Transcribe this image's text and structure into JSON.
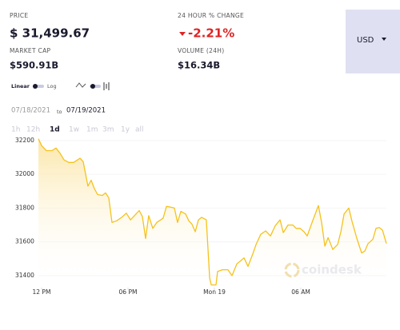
{
  "header": {
    "price_label": "PRICE",
    "price": "$ 31,499.67",
    "change_label": "24 HOUR % CHANGE",
    "change": "-2.21%",
    "market_cap_label": "MARKET CAP",
    "market_cap": "$590.91B",
    "volume_label": "VOLUME (24H)",
    "volume": "$16.34B",
    "currency": "USD"
  },
  "scale_toggle": {
    "linear": "Linear",
    "log": "Log"
  },
  "date_range": {
    "from": "07/18/2021",
    "to_word": "to",
    "to": "07/19/2021"
  },
  "ranges": [
    "1h",
    "12h",
    "1d",
    "1w",
    "1m",
    "3m",
    "1y",
    "all"
  ],
  "watermark": "coindesk",
  "chart_data": {
    "type": "line",
    "color": "#f5c21b",
    "fill": "#fdf0c4",
    "x": [
      -0.22,
      0,
      0.33,
      0.72,
      1.0,
      1.28,
      1.56,
      1.89,
      2.22,
      2.5,
      2.67,
      2.89,
      3.22,
      3.44,
      3.67,
      3.89,
      4.22,
      4.44,
      4.67,
      4.89,
      5.22,
      5.56,
      5.89,
      6.17,
      6.5,
      6.78,
      7.0,
      7.22,
      7.44,
      7.72,
      8.0,
      8.44,
      8.67,
      9.0,
      9.22,
      9.44,
      9.67,
      10.0,
      10.22,
      10.44,
      10.67,
      10.89,
      11.11,
      11.44,
      11.67,
      11.78,
      12.11,
      12.22,
      12.56,
      12.94,
      13.22,
      13.56,
      13.78,
      14.06,
      14.33,
      14.67,
      14.89,
      15.22,
      15.56,
      15.89,
      16.22,
      16.56,
      16.78,
      17.11,
      17.44,
      17.67,
      17.94,
      18.22,
      18.44,
      18.78,
      19.22,
      19.44,
      19.67,
      19.89,
      20.22,
      20.56,
      20.78,
      21.0,
      21.33,
      21.56,
      21.89,
      22.22,
      22.44,
      22.67,
      23.0,
      23.22,
      23.44,
      23.67,
      23.94
    ],
    "values": [
      32210,
      32170,
      32140,
      32140,
      32155,
      32125,
      32085,
      32070,
      32070,
      32085,
      32095,
      32075,
      31930,
      31965,
      31915,
      31880,
      31875,
      31890,
      31860,
      31715,
      31725,
      31745,
      31770,
      31730,
      31760,
      31785,
      31750,
      31620,
      31755,
      31680,
      31715,
      31740,
      31810,
      31805,
      31800,
      31715,
      31780,
      31765,
      31725,
      31705,
      31660,
      31730,
      31745,
      31730,
      31385,
      31345,
      31345,
      31425,
      31435,
      31435,
      31400,
      31470,
      31485,
      31505,
      31455,
      31530,
      31585,
      31645,
      31665,
      31635,
      31695,
      31730,
      31655,
      31700,
      31700,
      31680,
      31680,
      31660,
      31635,
      31715,
      31815,
      31715,
      31575,
      31625,
      31555,
      31585,
      31660,
      31765,
      31800,
      31720,
      31620,
      31535,
      31545,
      31590,
      31615,
      31680,
      31685,
      31670,
      31590
    ],
    "xlim": [
      -0.22,
      23.94
    ],
    "xticks": [
      {
        "value": 0,
        "label": "12 PM"
      },
      {
        "value": 6,
        "label": "06 PM"
      },
      {
        "value": 12,
        "label": "Mon 19"
      },
      {
        "value": 18,
        "label": "06 AM"
      }
    ],
    "ylim": [
      31330,
      32220
    ],
    "yticks": [
      31400,
      31600,
      31800,
      32000,
      32200
    ],
    "grid": true
  }
}
